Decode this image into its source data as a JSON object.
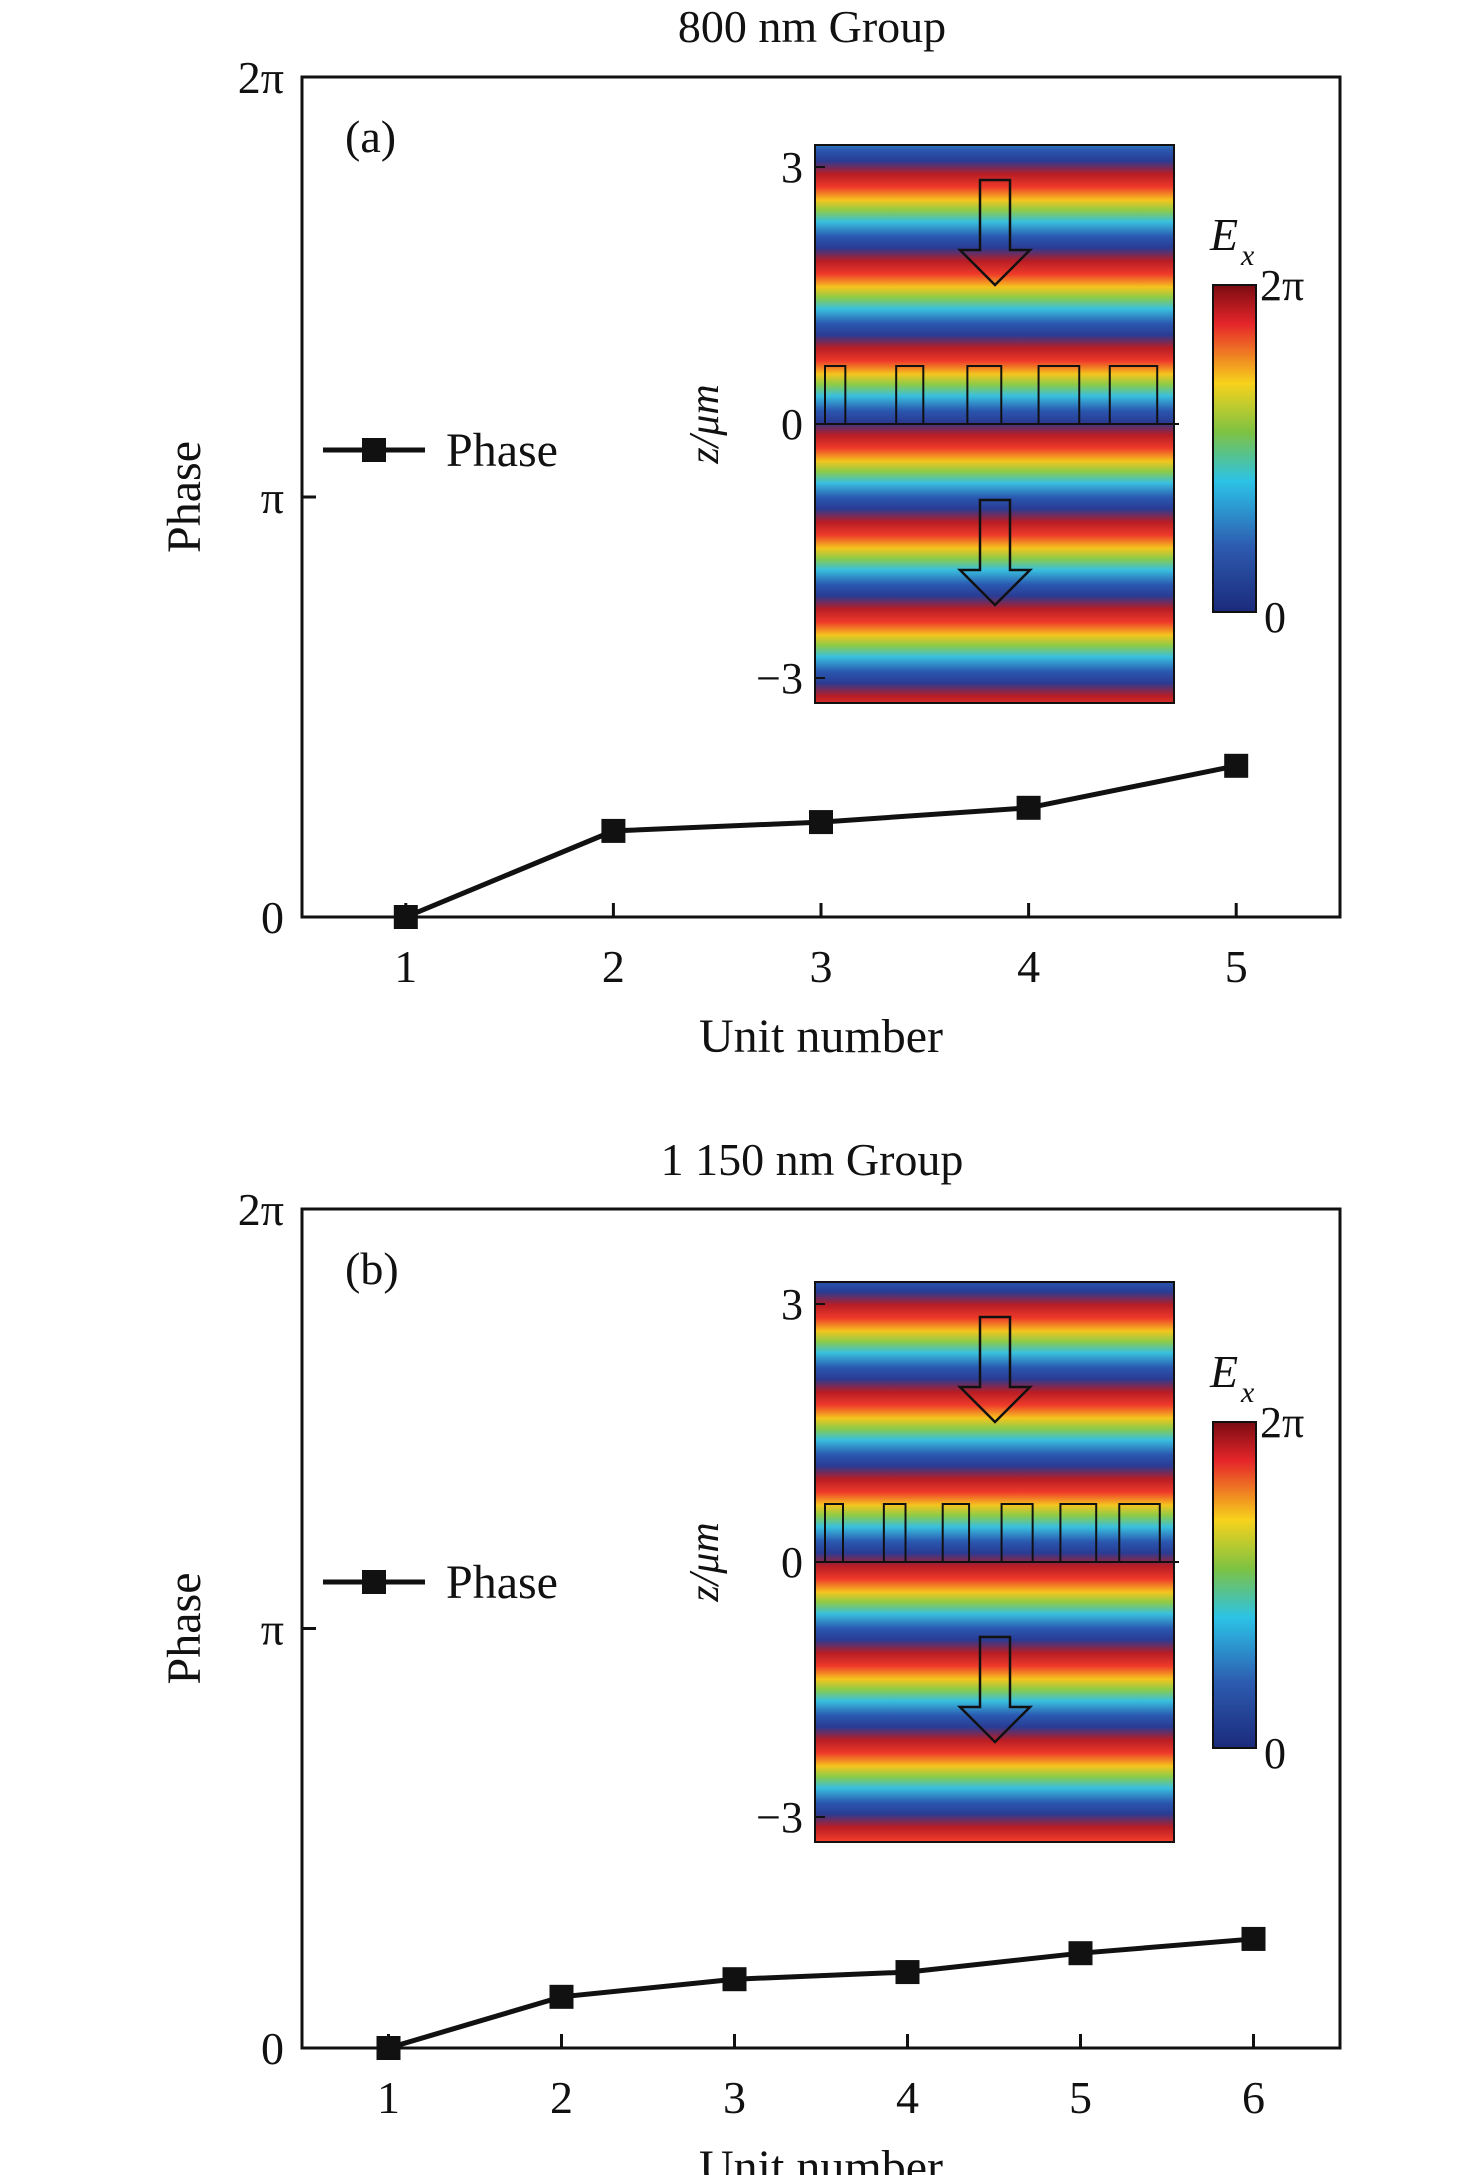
{
  "chart_data": [
    {
      "type": "line",
      "panel_label": "(a)",
      "title": "800 nm Group",
      "xlabel": "Unit number",
      "ylabel": "Phase",
      "x": [
        1,
        2,
        3,
        4,
        5
      ],
      "x_tick_labels": [
        "1",
        "2",
        "3",
        "4",
        "5"
      ],
      "xlim": [
        0.5,
        5.5
      ],
      "y_tick_labels": [
        "0",
        "π",
        "2π"
      ],
      "ylim_in_pi": [
        0,
        2
      ],
      "series": [
        {
          "name": "Phase",
          "values_in_pi": [
            0,
            0.205,
            0.226,
            0.26,
            0.36
          ],
          "marker": "square",
          "color": "#111111"
        }
      ],
      "legend": {
        "label": "Phase",
        "position": "left-middle"
      },
      "grid": false,
      "inset": {
        "type": "heatmap",
        "y_tick_labels": [
          "3",
          "0",
          "−3"
        ],
        "ylabel": "z/μm",
        "colorbar_label_main": "E",
        "colorbar_label_sub": "x",
        "colorbar_tick_labels": [
          "2π",
          "0"
        ],
        "colormap": "jet",
        "unit_boxes": 5
      }
    },
    {
      "type": "line",
      "panel_label": "(b)",
      "title": "1 150 nm Group",
      "xlabel": "Unit number",
      "ylabel": "Phase",
      "x": [
        1,
        2,
        3,
        4,
        5,
        6
      ],
      "x_tick_labels": [
        "1",
        "2",
        "3",
        "4",
        "5",
        "6"
      ],
      "xlim": [
        0.5,
        6.5
      ],
      "y_tick_labels": [
        "0",
        "π",
        "2π"
      ],
      "ylim_in_pi": [
        0,
        2
      ],
      "series": [
        {
          "name": "Phase",
          "values_in_pi": [
            0,
            0.122,
            0.164,
            0.181,
            0.226,
            0.26
          ],
          "marker": "square",
          "color": "#111111"
        }
      ],
      "legend": {
        "label": "Phase",
        "position": "left-middle"
      },
      "grid": false,
      "inset": {
        "type": "heatmap",
        "y_tick_labels": [
          "3",
          "0",
          "−3"
        ],
        "ylabel": "z/μm",
        "colorbar_label_main": "E",
        "colorbar_label_sub": "x",
        "colorbar_tick_labels": [
          "2π",
          "0"
        ],
        "colormap": "jet",
        "unit_boxes": 6
      }
    }
  ]
}
